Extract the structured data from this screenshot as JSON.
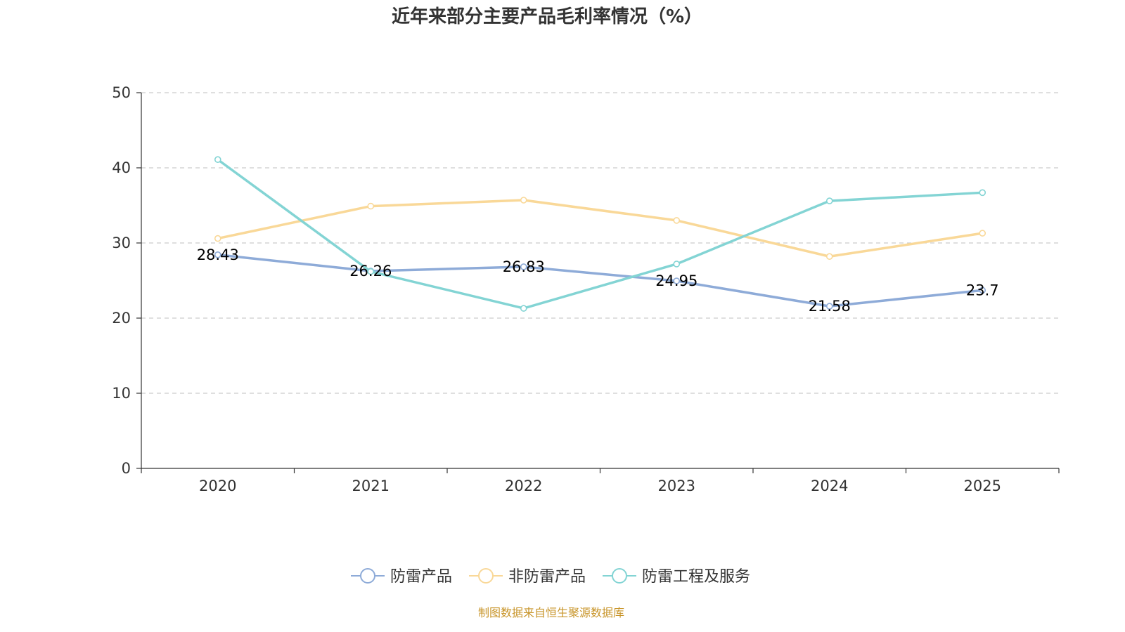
{
  "chart_data": {
    "type": "line",
    "title": "近年来部分主要产品毛利率情况（%）",
    "categories": [
      "2020",
      "2021",
      "2022",
      "2023",
      "2024",
      "2025"
    ],
    "ylim": [
      0,
      50
    ],
    "yticks": [
      0,
      10,
      20,
      30,
      40,
      50
    ],
    "grid": true,
    "legend_position": "bottom",
    "series": [
      {
        "name": "防雷产品",
        "color": "#8eabd8",
        "values": [
          28.43,
          26.26,
          26.83,
          24.95,
          21.58,
          23.7
        ],
        "show_labels": true
      },
      {
        "name": "非防雷产品",
        "color": "#f9d898",
        "values": [
          30.6,
          34.9,
          35.7,
          33.0,
          28.2,
          31.3
        ],
        "show_labels": false
      },
      {
        "name": "防雷工程及服务",
        "color": "#83d4d4",
        "values": [
          41.1,
          26.2,
          21.3,
          27.2,
          35.6,
          36.7
        ],
        "show_labels": false
      }
    ]
  },
  "source": {
    "text": "制图数据来自恒生聚源数据库",
    "color": "#c8952a"
  }
}
